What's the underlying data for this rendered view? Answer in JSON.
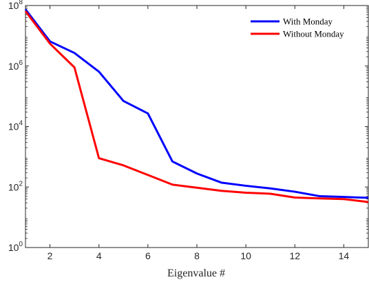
{
  "chart_data": {
    "type": "line",
    "title": "",
    "xlabel": "Eigenvalue #",
    "ylabel": "",
    "x": [
      1,
      2,
      3,
      4,
      5,
      6,
      7,
      8,
      9,
      10,
      11,
      12,
      13,
      14,
      15
    ],
    "xlim": [
      1,
      15
    ],
    "xticks": [
      2,
      4,
      6,
      8,
      10,
      12,
      14
    ],
    "yscale": "log",
    "ylim": [
      1,
      100000000
    ],
    "yticks": [
      {
        "value": 1,
        "base": "10",
        "exp": "0"
      },
      {
        "value": 100,
        "base": "10",
        "exp": "2"
      },
      {
        "value": 10000,
        "base": "10",
        "exp": "4"
      },
      {
        "value": 1000000,
        "base": "10",
        "exp": "6"
      },
      {
        "value": 100000000,
        "base": "10",
        "exp": "8"
      }
    ],
    "grid": false,
    "legend_position": "top-right",
    "series": [
      {
        "name": "With Monday",
        "color": "#0000ff",
        "values": [
          75000000,
          6500000,
          2700000,
          650000,
          70000,
          27000,
          700,
          280,
          140,
          110,
          90,
          70,
          50,
          47,
          44
        ]
      },
      {
        "name": "Without Monday",
        "color": "#ff0000",
        "values": [
          65000000,
          5500000,
          900000,
          900,
          520,
          250,
          120,
          95,
          75,
          65,
          60,
          45,
          42,
          40,
          32
        ]
      }
    ]
  }
}
